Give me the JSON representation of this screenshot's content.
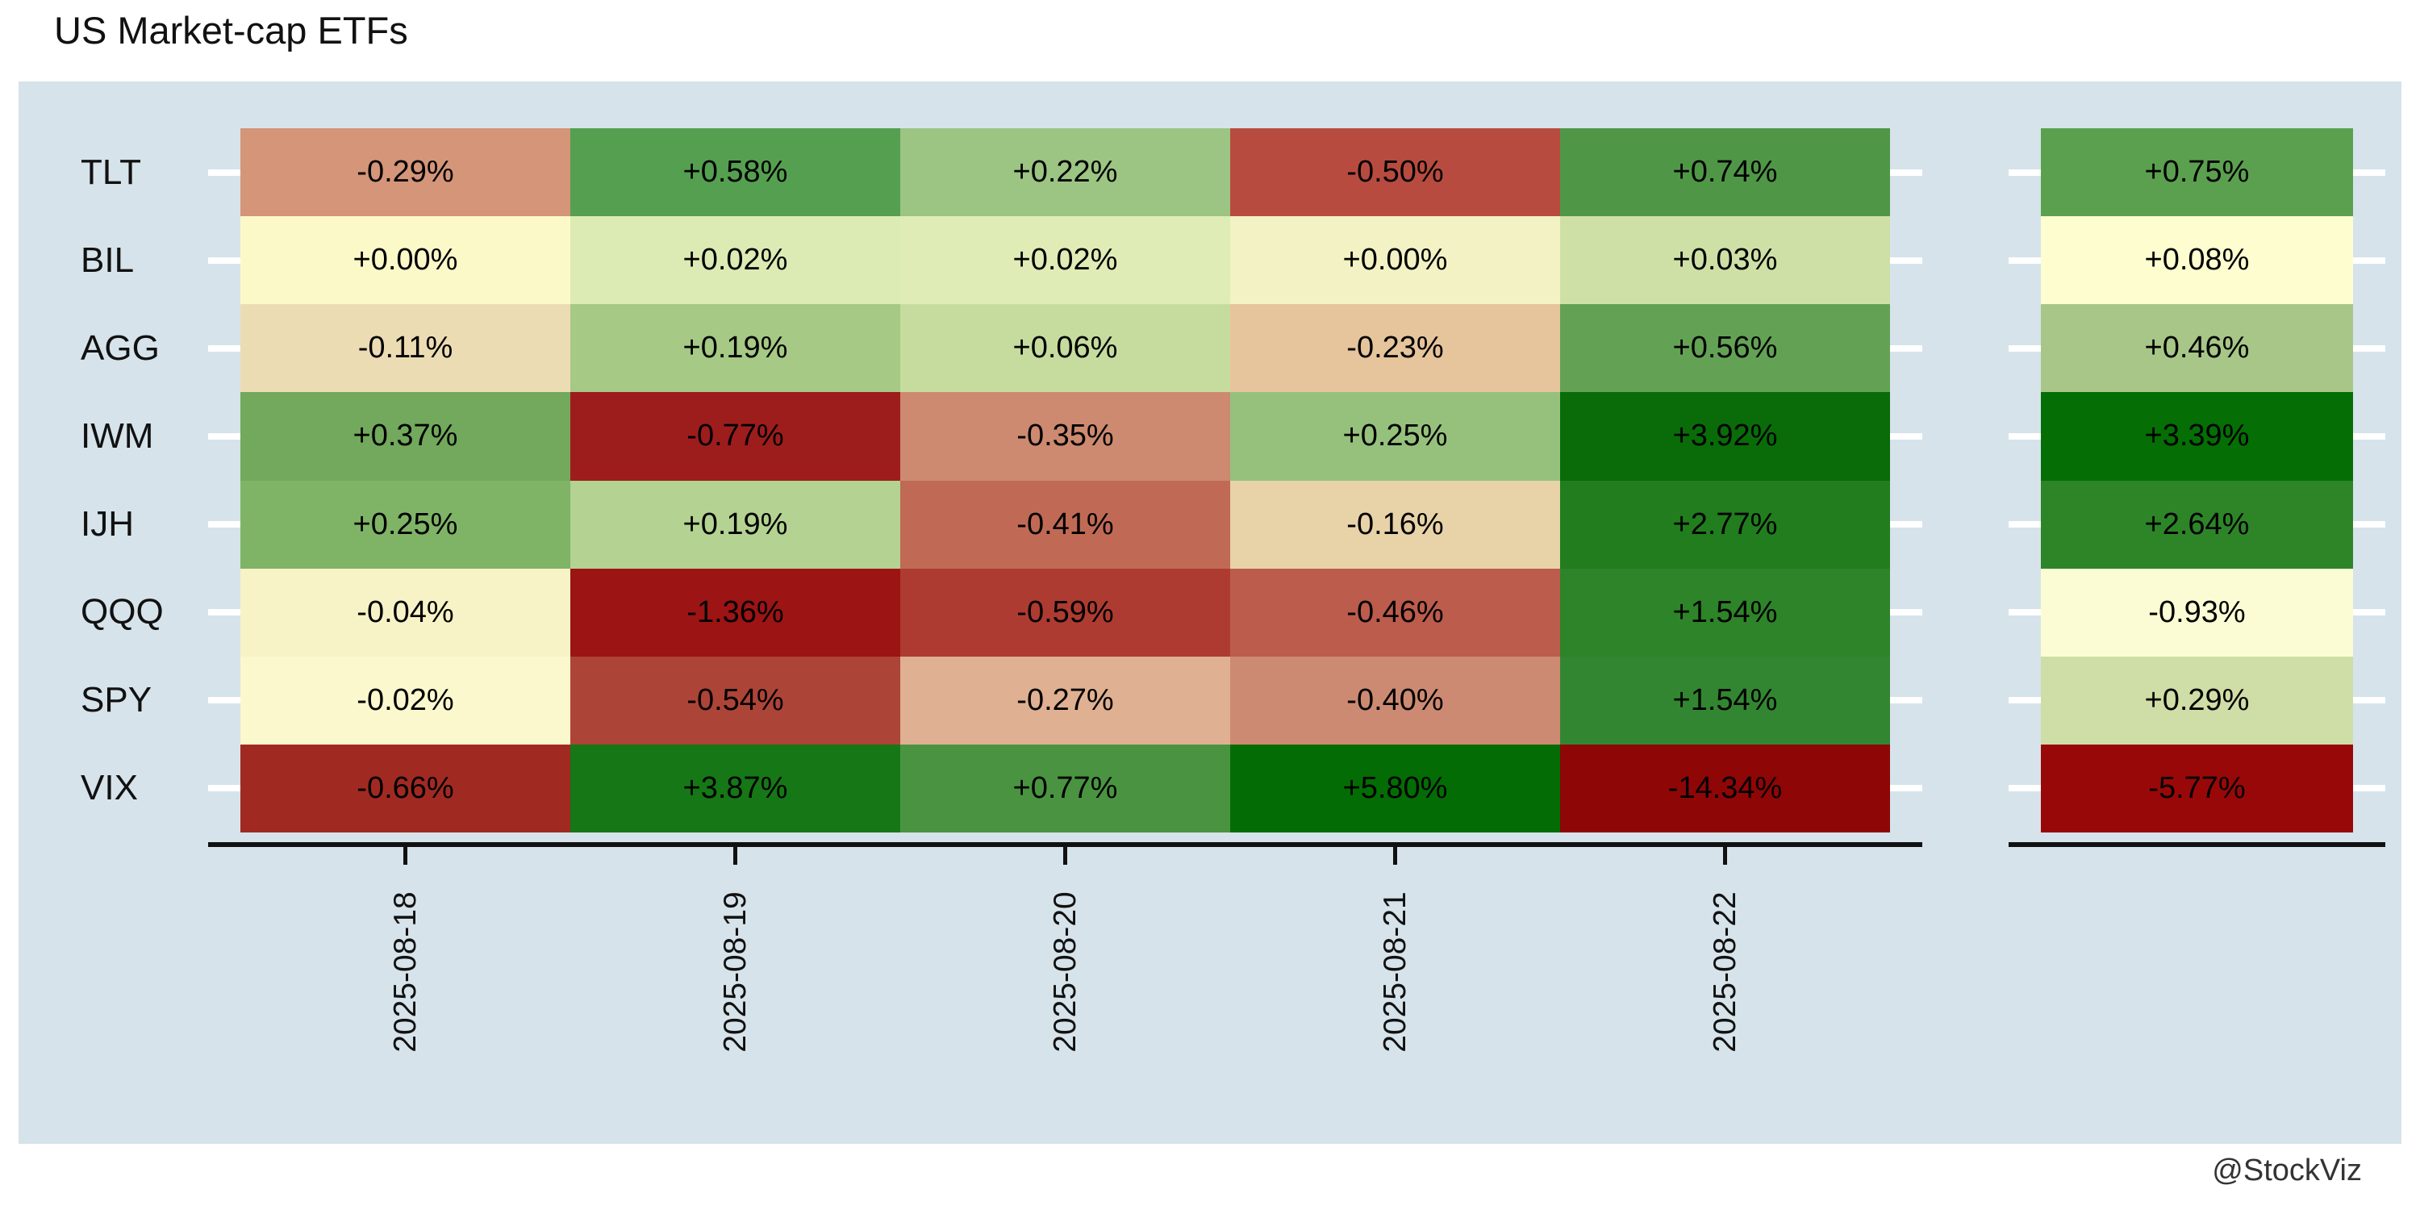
{
  "title": "US Market-cap ETFs",
  "watermark": "@StockViz",
  "colors": {
    "page_bg": "#ffffff",
    "panel_bg": "#d6e3ea",
    "axis": "#111111",
    "tick_mark": "#ffffff",
    "cell_text": "#000000",
    "label_text": "#111111",
    "watermark_text": "#333333"
  },
  "chart_data": {
    "type": "heatmap",
    "title": "US Market-cap ETFs",
    "legend": "none",
    "grid": "off",
    "x_tick_labels": [
      "2025-08-18",
      "2025-08-19",
      "2025-08-20",
      "2025-08-21",
      "2025-08-22"
    ],
    "y_tick_labels": [
      "TLT",
      "BIL",
      "AGG",
      "IWM",
      "IJH",
      "QQQ",
      "SPY",
      "VIX"
    ],
    "rows": [
      {
        "label": "TLT",
        "values": [
          "-0.29%",
          "+0.58%",
          "+0.22%",
          "-0.50%",
          "+0.74%"
        ],
        "colors": [
          "#d49579",
          "#55a050",
          "#9cc483",
          "#b84b40",
          "#4f9747"
        ],
        "summary_value": "+0.75%",
        "summary_color": "#5ba04f"
      },
      {
        "label": "BIL",
        "values": [
          "+0.00%",
          "+0.02%",
          "+0.02%",
          "+0.00%",
          "+0.03%"
        ],
        "colors": [
          "#fcf9c9",
          "#dcebb4",
          "#dfecb6",
          "#f3f2c4",
          "#cfe0a6"
        ],
        "summary_value": "+0.08%",
        "summary_color": "#fdfdd0"
      },
      {
        "label": "AGG",
        "values": [
          "-0.11%",
          "+0.19%",
          "+0.06%",
          "-0.23%",
          "+0.56%"
        ],
        "colors": [
          "#ecdcb4",
          "#a6c985",
          "#c6dc9e",
          "#e6c49c",
          "#63a254"
        ],
        "summary_value": "+0.46%",
        "summary_color": "#a7c687"
      },
      {
        "label": "IWM",
        "values": [
          "+0.37%",
          "-0.77%",
          "-0.35%",
          "+0.25%",
          "+3.92%"
        ],
        "colors": [
          "#72a95c",
          "#9d1d1c",
          "#cd8a70",
          "#96c17d",
          "#096c09"
        ],
        "summary_value": "+3.39%",
        "summary_color": "#056e05"
      },
      {
        "label": "IJH",
        "values": [
          "+0.25%",
          "+0.19%",
          "-0.41%",
          "-0.16%",
          "+2.77%"
        ],
        "colors": [
          "#7fb467",
          "#b4d292",
          "#c06a56",
          "#e8d2a8",
          "#217d1e"
        ],
        "summary_value": "+2.64%",
        "summary_color": "#2d8528"
      },
      {
        "label": "QQQ",
        "values": [
          "-0.04%",
          "-1.36%",
          "-0.59%",
          "-0.46%",
          "+1.54%"
        ],
        "colors": [
          "#f7f3c6",
          "#9c1414",
          "#ae3b31",
          "#bc5c4c",
          "#2e8429"
        ],
        "summary_value": "-0.93%",
        "summary_color": "#fcfcd4"
      },
      {
        "label": "SPY",
        "values": [
          "-0.02%",
          "-0.54%",
          "-0.27%",
          "-0.40%",
          "+1.54%"
        ],
        "colors": [
          "#fbf8ce",
          "#ad4438",
          "#dfb091",
          "#cd8a72",
          "#338631"
        ],
        "summary_value": "+0.29%",
        "summary_color": "#cfdda6"
      },
      {
        "label": "VIX",
        "values": [
          "-0.66%",
          "+3.87%",
          "+0.77%",
          "+5.80%",
          "-14.34%"
        ],
        "colors": [
          "#a02a22",
          "#167716",
          "#4a9441",
          "#046c04",
          "#8f0606"
        ],
        "summary_value": "-5.77%",
        "summary_color": "#990808"
      }
    ]
  }
}
